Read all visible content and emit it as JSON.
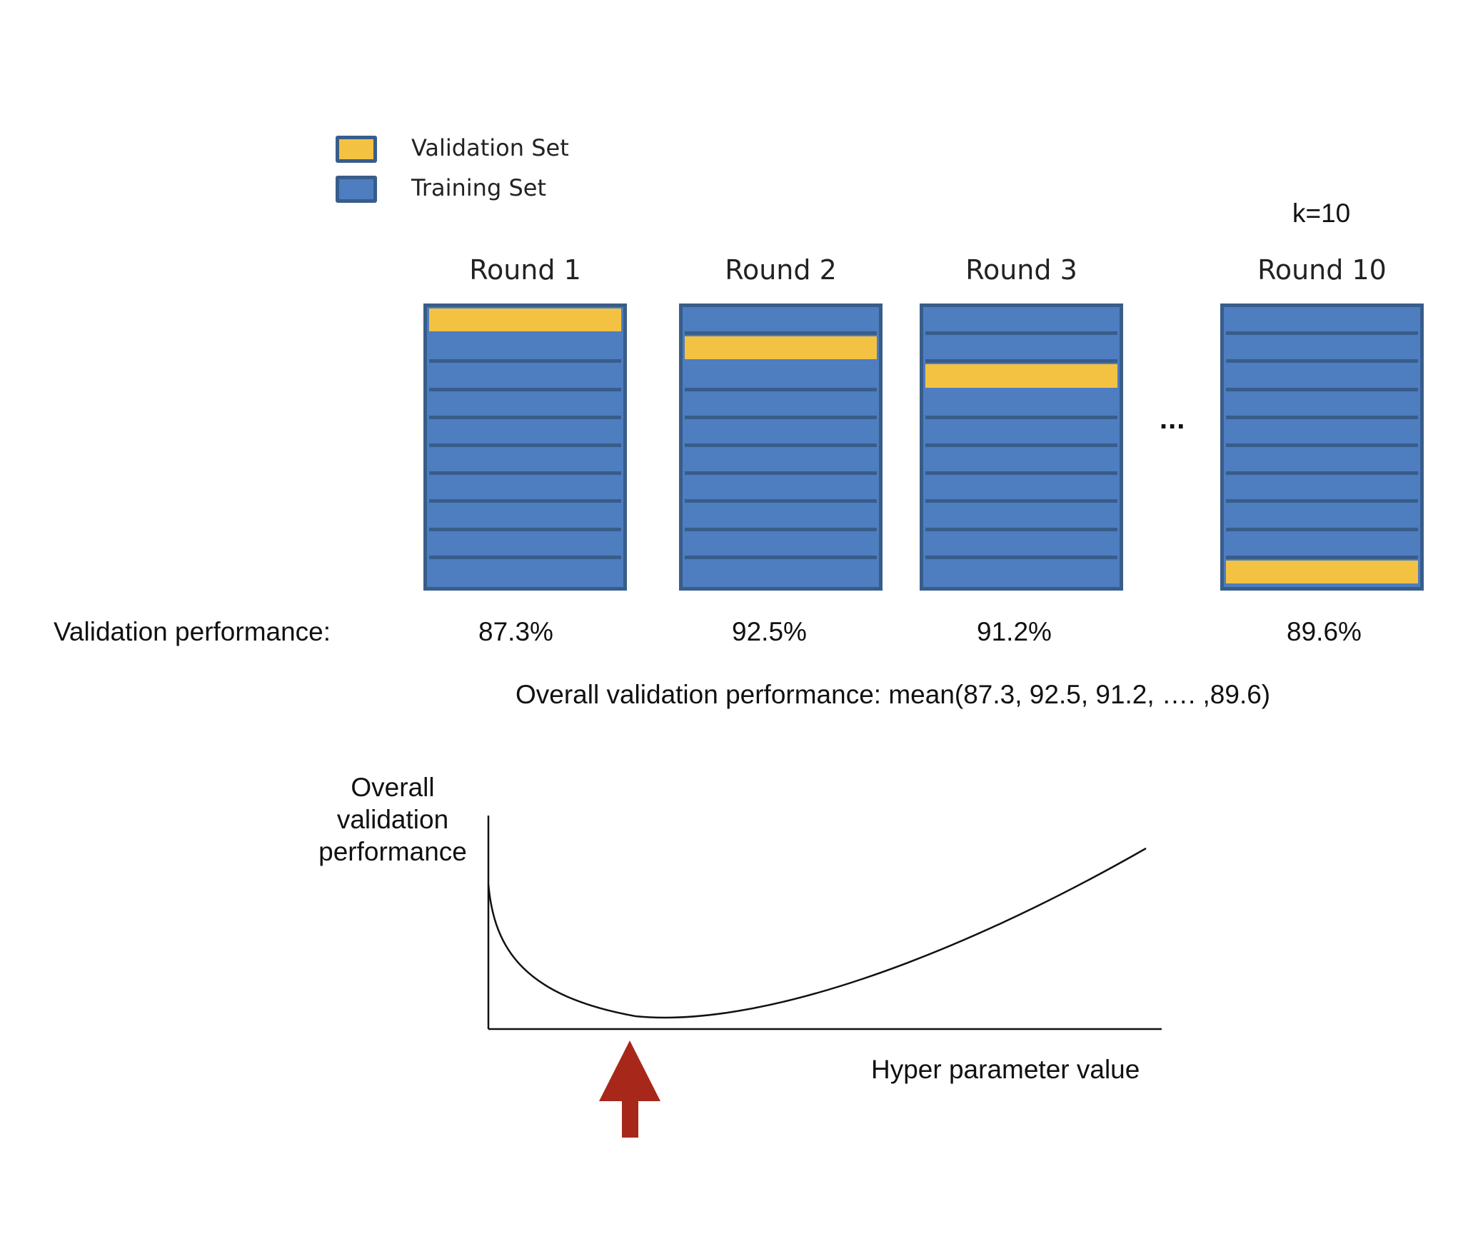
{
  "legend": {
    "items": [
      {
        "label": "Validation Set",
        "color": "#f4c243"
      },
      {
        "label": "Training Set",
        "color": "#4e7dc0"
      }
    ]
  },
  "k_label": "k=10",
  "rounds": [
    {
      "title": "Round 1",
      "validation_fold": 1,
      "performance": "87.3%"
    },
    {
      "title": "Round 2",
      "validation_fold": 2,
      "performance": "92.5%"
    },
    {
      "title": "Round 3",
      "validation_fold": 3,
      "performance": "91.2%"
    },
    {
      "title": "Round 10",
      "validation_fold": 10,
      "performance": "89.6%"
    }
  ],
  "folds_per_round": 10,
  "ellipsis": "...",
  "validation_performance_label": "Validation performance:",
  "overall_formula": "Overall validation performance:  mean(87.3, 92.5, 91.2, …. ,89.6)",
  "plot": {
    "ylabel_lines": [
      "Overall",
      "validation",
      "performance"
    ],
    "xlabel": "Hyper parameter value",
    "arrow_color": "#a7281a"
  },
  "colors": {
    "training": "#4e7dc0",
    "validation": "#f4c243",
    "border": "#385d8a"
  }
}
